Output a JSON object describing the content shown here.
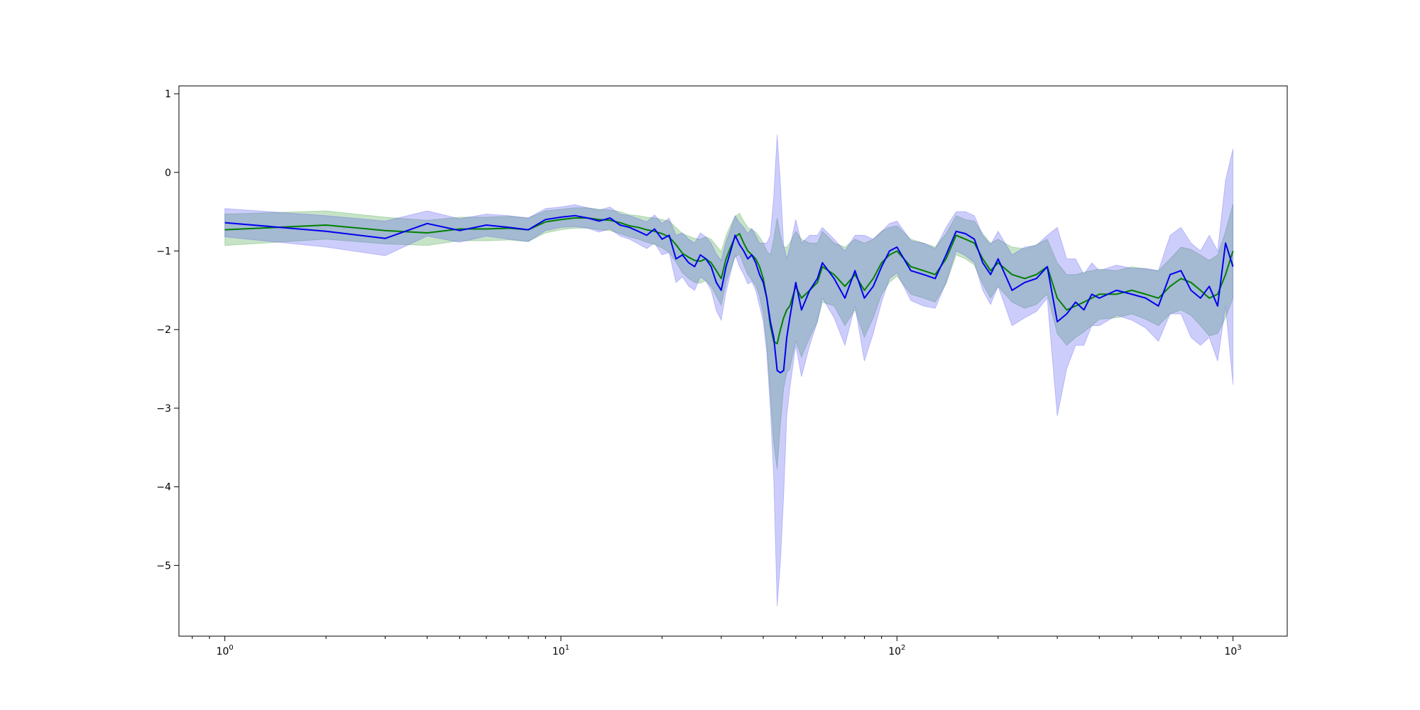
{
  "chart_data": {
    "type": "line",
    "title": "",
    "xlabel": "",
    "ylabel": "",
    "xscale": "log",
    "xlim": [
      0.73,
      1450
    ],
    "ylim": [
      -5.9,
      1.1
    ],
    "grid": false,
    "legend": "none",
    "x_ticks": [
      {
        "base": "10",
        "exp": "0",
        "value": 1
      },
      {
        "base": "10",
        "exp": "1",
        "value": 10
      },
      {
        "base": "10",
        "exp": "2",
        "value": 100
      },
      {
        "base": "10",
        "exp": "3",
        "value": 1000
      }
    ],
    "y_ticks": [
      {
        "label": "1",
        "value": 1
      },
      {
        "label": "0",
        "value": 0
      },
      {
        "label": "−1",
        "value": -1
      },
      {
        "label": "−2",
        "value": -2
      },
      {
        "label": "−3",
        "value": -3
      },
      {
        "label": "−4",
        "value": -4
      },
      {
        "label": "−5",
        "value": -5
      }
    ],
    "series": [
      {
        "color": "#008000",
        "band_color": "#008000",
        "band_opacity": 0.22,
        "x": [
          1,
          2,
          3,
          4,
          5,
          6,
          7,
          8,
          9,
          10,
          11,
          12,
          13,
          14,
          15,
          16,
          17,
          18,
          19,
          20,
          21,
          22,
          23,
          24,
          25,
          26,
          27,
          28,
          29,
          30,
          31,
          32,
          33,
          34,
          35,
          36,
          37,
          38,
          39,
          40,
          41,
          42,
          43,
          44,
          45,
          46,
          47,
          48,
          50,
          52,
          55,
          58,
          60,
          65,
          70,
          75,
          80,
          85,
          90,
          95,
          100,
          110,
          120,
          130,
          140,
          150,
          160,
          170,
          180,
          190,
          200,
          220,
          240,
          260,
          280,
          300,
          320,
          340,
          360,
          380,
          400,
          450,
          500,
          550,
          600,
          650,
          700,
          750,
          800,
          850,
          900,
          950,
          1000
        ],
        "y": [
          -0.73,
          -0.67,
          -0.74,
          -0.77,
          -0.72,
          -0.72,
          -0.71,
          -0.73,
          -0.63,
          -0.6,
          -0.58,
          -0.58,
          -0.6,
          -0.61,
          -0.64,
          -0.68,
          -0.7,
          -0.73,
          -0.75,
          -0.78,
          -0.82,
          -0.92,
          -1.03,
          -1.08,
          -1.12,
          -1.13,
          -1.1,
          -1.15,
          -1.25,
          -1.35,
          -1.1,
          -0.95,
          -0.82,
          -0.78,
          -0.9,
          -1.0,
          -1.05,
          -1.1,
          -1.2,
          -1.35,
          -1.6,
          -1.95,
          -2.15,
          -2.18,
          -2.0,
          -1.85,
          -1.75,
          -1.7,
          -1.45,
          -1.6,
          -1.5,
          -1.4,
          -1.2,
          -1.3,
          -1.45,
          -1.3,
          -1.5,
          -1.35,
          -1.15,
          -1.05,
          -1.0,
          -1.2,
          -1.25,
          -1.3,
          -1.1,
          -0.8,
          -0.85,
          -0.9,
          -1.1,
          -1.25,
          -1.15,
          -1.3,
          -1.35,
          -1.3,
          -1.2,
          -1.6,
          -1.75,
          -1.7,
          -1.65,
          -1.6,
          -1.55,
          -1.55,
          -1.5,
          -1.55,
          -1.6,
          -1.45,
          -1.35,
          -1.4,
          -1.5,
          -1.6,
          -1.55,
          -1.3,
          -1.0
        ],
        "band": [
          0.2,
          0.18,
          0.17,
          0.16,
          0.15,
          0.15,
          0.15,
          0.15,
          0.14,
          0.13,
          0.13,
          0.13,
          0.13,
          0.13,
          0.14,
          0.14,
          0.15,
          0.16,
          0.17,
          0.18,
          0.2,
          0.22,
          0.25,
          0.27,
          0.28,
          0.28,
          0.28,
          0.3,
          0.32,
          0.34,
          0.3,
          0.28,
          0.26,
          0.26,
          0.28,
          0.3,
          0.32,
          0.34,
          0.38,
          0.45,
          0.6,
          0.9,
          1.3,
          1.6,
          1.2,
          0.9,
          0.8,
          0.8,
          0.7,
          0.75,
          0.6,
          0.5,
          0.45,
          0.4,
          0.5,
          0.45,
          0.6,
          0.5,
          0.4,
          0.35,
          0.32,
          0.35,
          0.35,
          0.35,
          0.32,
          0.25,
          0.25,
          0.28,
          0.32,
          0.35,
          0.3,
          0.35,
          0.38,
          0.38,
          0.35,
          0.45,
          0.45,
          0.4,
          0.38,
          0.35,
          0.32,
          0.3,
          0.3,
          0.32,
          0.35,
          0.35,
          0.4,
          0.42,
          0.45,
          0.48,
          0.5,
          0.55,
          0.6
        ]
      },
      {
        "color": "#0000ee",
        "band_color": "#4a4af0",
        "band_opacity": 0.28,
        "x": [
          1,
          2,
          3,
          4,
          5,
          6,
          7,
          8,
          9,
          10,
          11,
          12,
          13,
          14,
          15,
          16,
          17,
          18,
          19,
          20,
          21,
          22,
          23,
          24,
          25,
          26,
          27,
          28,
          29,
          30,
          31,
          32,
          33,
          34,
          35,
          36,
          37,
          38,
          39,
          40,
          41,
          42,
          43,
          44,
          45,
          46,
          47,
          48,
          50,
          52,
          55,
          58,
          60,
          65,
          70,
          75,
          80,
          85,
          90,
          95,
          100,
          110,
          120,
          130,
          140,
          150,
          160,
          170,
          180,
          190,
          200,
          220,
          240,
          260,
          280,
          300,
          320,
          340,
          360,
          380,
          400,
          450,
          500,
          550,
          600,
          650,
          700,
          750,
          800,
          850,
          900,
          950,
          1000
        ],
        "y": [
          -0.64,
          -0.75,
          -0.84,
          -0.65,
          -0.74,
          -0.67,
          -0.7,
          -0.73,
          -0.6,
          -0.57,
          -0.55,
          -0.58,
          -0.62,
          -0.58,
          -0.67,
          -0.7,
          -0.75,
          -0.8,
          -0.72,
          -0.85,
          -0.8,
          -1.1,
          -1.05,
          -1.15,
          -1.2,
          -1.05,
          -1.1,
          -1.2,
          -1.4,
          -1.5,
          -1.2,
          -1.0,
          -0.8,
          -0.92,
          -1.0,
          -1.1,
          -1.05,
          -1.15,
          -1.3,
          -1.4,
          -1.6,
          -1.9,
          -2.1,
          -2.52,
          -2.55,
          -2.52,
          -2.1,
          -1.85,
          -1.4,
          -1.75,
          -1.5,
          -1.35,
          -1.15,
          -1.35,
          -1.6,
          -1.25,
          -1.6,
          -1.45,
          -1.2,
          -1.0,
          -0.95,
          -1.25,
          -1.3,
          -1.35,
          -1.05,
          -0.75,
          -0.78,
          -0.85,
          -1.15,
          -1.3,
          -1.1,
          -1.5,
          -1.4,
          -1.35,
          -1.2,
          -1.9,
          -1.8,
          -1.65,
          -1.75,
          -1.55,
          -1.6,
          -1.5,
          -1.55,
          -1.6,
          -1.7,
          -1.3,
          -1.25,
          -1.5,
          -1.6,
          -1.45,
          -1.7,
          -0.9,
          -1.2
        ],
        "band": [
          0.18,
          0.2,
          0.22,
          0.16,
          0.15,
          0.14,
          0.15,
          0.15,
          0.14,
          0.13,
          0.14,
          0.13,
          0.14,
          0.14,
          0.14,
          0.15,
          0.16,
          0.17,
          0.18,
          0.2,
          0.22,
          0.3,
          0.28,
          0.3,
          0.3,
          0.28,
          0.28,
          0.3,
          0.36,
          0.38,
          0.32,
          0.28,
          0.25,
          0.28,
          0.3,
          0.32,
          0.34,
          0.35,
          0.4,
          0.5,
          0.7,
          1.1,
          1.8,
          3.0,
          2.4,
          1.6,
          1.0,
          0.9,
          0.8,
          0.85,
          0.7,
          0.55,
          0.45,
          0.5,
          0.6,
          0.45,
          0.8,
          0.6,
          0.45,
          0.35,
          0.33,
          0.38,
          0.4,
          0.38,
          0.35,
          0.25,
          0.28,
          0.3,
          0.35,
          0.38,
          0.35,
          0.45,
          0.45,
          0.42,
          0.4,
          1.2,
          0.7,
          0.55,
          0.45,
          0.4,
          0.35,
          0.32,
          0.33,
          0.38,
          0.45,
          0.5,
          0.55,
          0.6,
          0.6,
          0.65,
          0.7,
          0.8,
          1.5
        ]
      }
    ]
  }
}
